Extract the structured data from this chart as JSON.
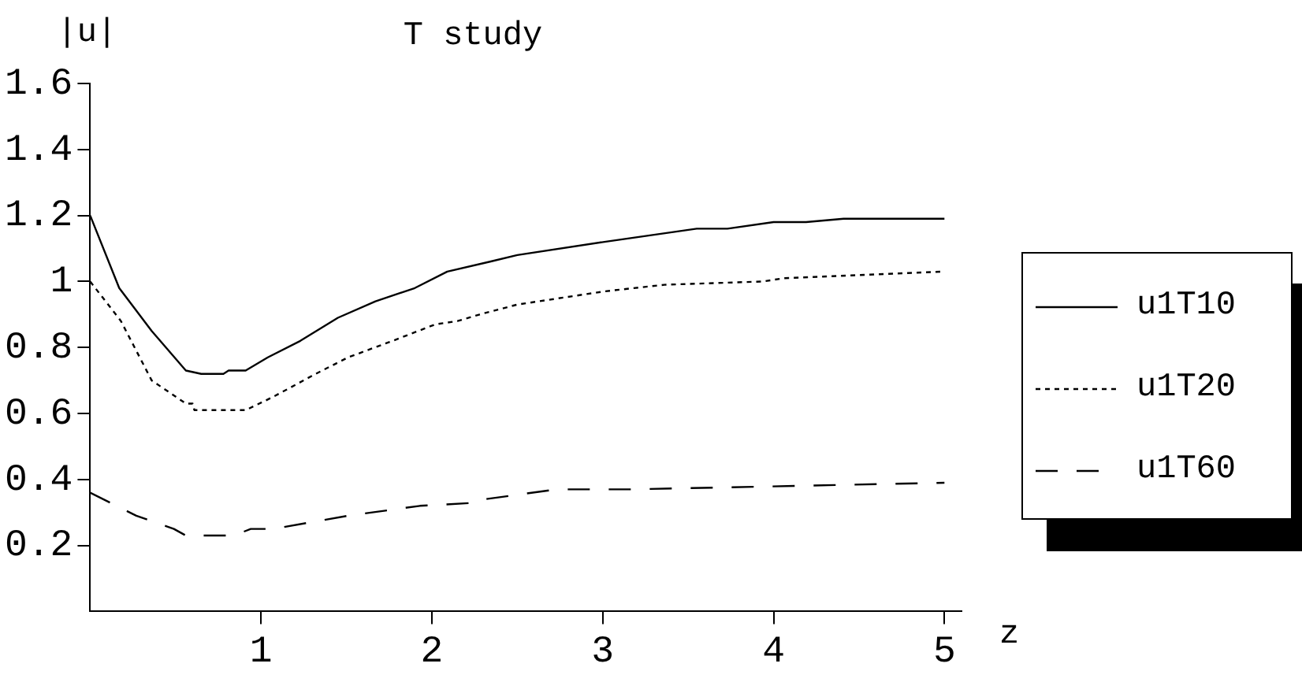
{
  "chart_data": {
    "type": "line",
    "title": "T study",
    "xlabel": "z",
    "ylabel": "|u|",
    "xlim": [
      0,
      5.1
    ],
    "xticks": [
      1,
      2,
      3,
      4,
      5
    ],
    "ylim": [
      0,
      1.6
    ],
    "yticks": [
      0.2,
      0.4,
      0.6,
      0.8,
      1,
      1.2,
      1.4,
      1.6
    ],
    "grid": false,
    "legend": "right",
    "marker": "none",
    "series": [
      {
        "name": "u1T10",
        "color": "#000000",
        "line_style": "solid",
        "x": [
          0,
          0.17,
          0.36,
          0.56,
          0.65,
          0.78,
          0.81,
          0.91,
          1.04,
          1.23,
          1.45,
          1.67,
          1.9,
          2.09,
          2.34,
          2.5,
          3.01,
          3.55,
          3.73,
          4.0,
          4.19,
          4.41,
          5.0
        ],
        "values": [
          1.2,
          0.98,
          0.85,
          0.73,
          0.72,
          0.72,
          0.73,
          0.73,
          0.77,
          0.82,
          0.89,
          0.94,
          0.98,
          1.03,
          1.06,
          1.08,
          1.12,
          1.16,
          1.16,
          1.18,
          1.18,
          1.19,
          1.19
        ]
      },
      {
        "name": "u1T20",
        "color": "#000000",
        "line_style": "dotted",
        "x": [
          0,
          0.18,
          0.36,
          0.56,
          0.6,
          0.61,
          0.91,
          1.07,
          1.32,
          1.51,
          1.77,
          2.02,
          2.15,
          2.28,
          2.5,
          3.01,
          3.36,
          3.94,
          4.06,
          5.0
        ],
        "values": [
          1.0,
          0.88,
          0.7,
          0.63,
          0.63,
          0.61,
          0.61,
          0.65,
          0.72,
          0.77,
          0.82,
          0.87,
          0.88,
          0.9,
          0.93,
          0.97,
          0.99,
          1.0,
          1.01,
          1.03
        ]
      },
      {
        "name": "u1T60",
        "color": "#000000",
        "line_style": "dashed",
        "x": [
          0,
          0.27,
          0.49,
          0.56,
          0.84,
          0.94,
          1.07,
          1.51,
          1.93,
          2.28,
          2.31,
          2.73,
          3.17,
          5.0
        ],
        "values": [
          0.36,
          0.29,
          0.25,
          0.23,
          0.23,
          0.25,
          0.25,
          0.29,
          0.32,
          0.33,
          0.34,
          0.37,
          0.37,
          0.39
        ]
      }
    ]
  }
}
